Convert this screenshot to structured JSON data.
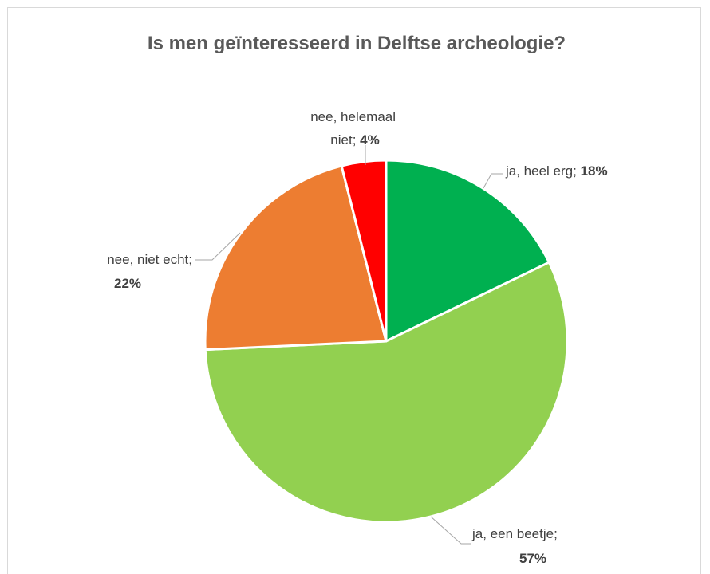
{
  "chart_data": {
    "type": "pie",
    "title": "Is men geïnteresseerd in Delftse archeologie?",
    "slices": [
      {
        "label": "ja, heel erg",
        "value": 18,
        "value_label": "18%",
        "color": "#00b050"
      },
      {
        "label": "ja, een beetje",
        "value": 57,
        "value_label": "57%",
        "color": "#92d050"
      },
      {
        "label": "nee, niet echt",
        "value": 22,
        "value_label": "22%",
        "color": "#ed7d31"
      },
      {
        "label": "nee, helemaal niet",
        "value": 4,
        "value_label": "4%",
        "color": "#ff0000"
      }
    ],
    "legend": "none",
    "data_labels": "outside-with-leader-lines"
  }
}
